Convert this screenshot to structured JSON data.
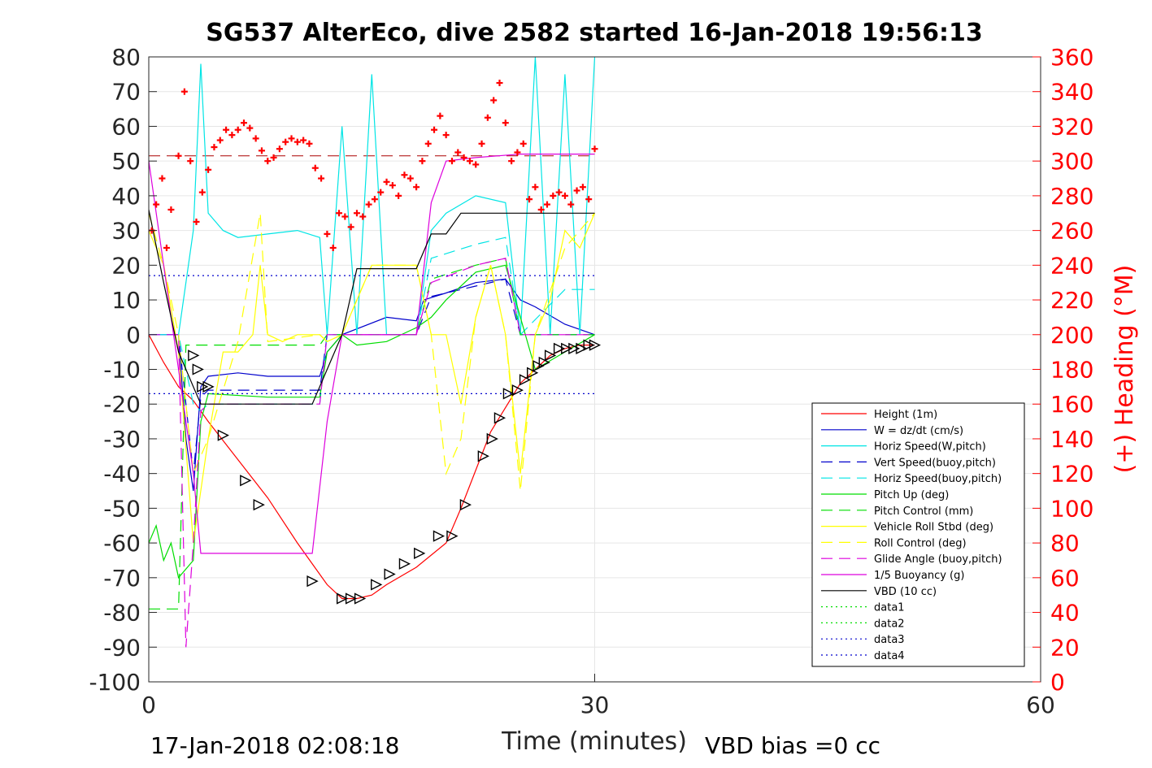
{
  "chart_data": {
    "type": "line",
    "title": "SG537 AlterEco, dive 2582 started 16-Jan-2018 19:56:13",
    "xlabel": "Time (minutes)",
    "ylabel": "",
    "ylabel_right": "(+) Heading (°M)",
    "xlim": [
      0,
      60
    ],
    "ylim": [
      -100,
      80
    ],
    "ylim_right": [
      0,
      360
    ],
    "x_ticks": [
      "0",
      "30",
      "60"
    ],
    "y_ticks": [
      "80",
      "70",
      "60",
      "50",
      "40",
      "30",
      "20",
      "10",
      "0",
      "-10",
      "-20",
      "-30",
      "-40",
      "-50",
      "-60",
      "-70",
      "-80",
      "-90",
      "-100"
    ],
    "y_ticks_right": [
      "360",
      "340",
      "320",
      "300",
      "280",
      "260",
      "240",
      "220",
      "200",
      "180",
      "160",
      "140",
      "120",
      "100",
      "80",
      "60",
      "40",
      "20",
      "0"
    ],
    "grid": true,
    "legend_position": "bottom-right",
    "footer_left": "17-Jan-2018 02:08:18",
    "footer_right": "VBD bias =0 cc",
    "series": [
      {
        "name": "Height (1m)",
        "color": "#ff0000",
        "style": "solid",
        "x": [
          0,
          1,
          2,
          3,
          4,
          6,
          8,
          10,
          12,
          13,
          14,
          15,
          16,
          18,
          20,
          21,
          23,
          25,
          26,
          27,
          28,
          29,
          30
        ],
        "y": [
          0,
          -8,
          -15,
          -19,
          -25,
          -36,
          -47,
          -60,
          -72,
          -76,
          -76,
          -75,
          -72,
          -67,
          -60,
          -50,
          -28,
          -14,
          -10,
          -6,
          -4,
          -3,
          -3
        ]
      },
      {
        "name": "W = dz/dt (cm/s)",
        "color": "#0000cc",
        "style": "solid",
        "x": [
          0,
          2,
          2.5,
          3,
          3.5,
          4,
          6,
          8,
          10,
          11.5,
          12,
          13,
          16,
          18,
          18.5,
          20,
          22,
          24,
          25,
          26,
          28,
          30
        ],
        "y": [
          0,
          0,
          -30,
          -45,
          -15,
          -12,
          -11,
          -12,
          -12,
          -12,
          -5,
          0,
          5,
          4,
          10,
          12,
          15,
          16,
          10,
          8,
          3,
          0
        ]
      },
      {
        "name": "Horiz Speed(W,pitch)",
        "color": "#00e5e5",
        "style": "solid",
        "x": [
          0,
          2,
          3,
          3.5,
          4,
          5,
          6,
          8,
          10,
          11.5,
          12,
          13,
          14,
          15,
          16,
          18,
          19,
          20,
          22,
          24,
          25,
          26,
          27,
          28,
          29,
          30
        ],
        "y": [
          0,
          0,
          30,
          78,
          35,
          30,
          28,
          29,
          30,
          28,
          0,
          60,
          0,
          75,
          0,
          0,
          30,
          35,
          40,
          38,
          0,
          80,
          0,
          75,
          0,
          80
        ]
      },
      {
        "name": "Vert Speed(buoy,pitch)",
        "color": "#0000cc",
        "style": "dashed",
        "x": [
          0,
          2,
          3,
          3.5,
          4,
          8,
          11.5,
          12,
          18,
          19,
          22,
          24,
          25,
          28,
          30
        ],
        "y": [
          0,
          0,
          -40,
          -18,
          -16,
          -16,
          -16,
          0,
          0,
          11,
          14,
          16,
          0,
          0,
          0
        ]
      },
      {
        "name": "Horiz Speed(buoy,pitch)",
        "color": "#00e5e5",
        "style": "dashed",
        "x": [
          0,
          2,
          3,
          3.5,
          4,
          8,
          11.5,
          12,
          18,
          19,
          22,
          24,
          25,
          28,
          30
        ],
        "y": [
          0,
          0,
          -20,
          -22,
          -20,
          -20,
          -20,
          0,
          0,
          22,
          26,
          28,
          0,
          13,
          13
        ]
      },
      {
        "name": "Pitch Up (deg)",
        "color": "#00dd00",
        "style": "solid",
        "x": [
          0,
          0.5,
          1,
          1.5,
          2,
          3,
          3.5,
          4,
          8,
          11.5,
          12,
          13,
          14,
          16,
          18,
          19,
          20,
          22,
          24,
          25,
          26,
          28,
          30
        ],
        "y": [
          -60,
          -55,
          -65,
          -60,
          -70,
          -65,
          -25,
          -17,
          -18,
          -18,
          -5,
          0,
          -3,
          -2,
          2,
          5,
          10,
          18,
          20,
          5,
          -10,
          -5,
          0
        ]
      },
      {
        "name": "Pitch Control (mm)",
        "color": "#00dd00",
        "style": "dashed",
        "x": [
          0,
          1,
          2,
          2.5,
          3,
          3.5,
          4,
          8,
          11.5,
          12,
          18,
          19,
          22,
          24,
          25,
          28,
          30
        ],
        "y": [
          -79,
          -79,
          -79,
          -3,
          -3,
          -3,
          -3,
          -3,
          -3,
          0,
          0,
          16,
          20,
          22,
          0,
          0,
          0
        ]
      },
      {
        "name": "Vehicle Roll Stbd (deg)",
        "color": "#ffff00",
        "style": "solid",
        "x": [
          0,
          1,
          2,
          3,
          4,
          5,
          6,
          7,
          7.5,
          8,
          9,
          10,
          11.5,
          12,
          13,
          15,
          18,
          19,
          20,
          21,
          22,
          23,
          24,
          25,
          26,
          27,
          28,
          29,
          30
        ],
        "y": [
          30,
          20,
          -5,
          -60,
          -30,
          -5,
          -5,
          0,
          20,
          0,
          -2,
          0,
          0,
          -2,
          0,
          20,
          20,
          0,
          0,
          -20,
          5,
          20,
          0,
          -40,
          0,
          10,
          30,
          25,
          35
        ]
      },
      {
        "name": "Roll Control (deg)",
        "color": "#ffff00",
        "style": "dashed",
        "x": [
          0,
          1,
          2,
          3,
          4,
          6,
          7.5,
          8,
          11.5,
          12,
          13,
          15,
          18,
          19,
          20,
          21,
          22,
          23,
          24,
          25,
          26,
          28,
          30
        ],
        "y": [
          35,
          20,
          0,
          -40,
          -30,
          -2,
          35,
          -2,
          0,
          -2,
          0,
          20,
          20,
          0,
          -40,
          -30,
          5,
          20,
          0,
          -45,
          0,
          25,
          35
        ]
      },
      {
        "name": "Glide Angle (buoy,pitch)",
        "color": "#dd00dd",
        "style": "dashed",
        "x": [
          0,
          2,
          2.5,
          3,
          3.5,
          4,
          8,
          11.5,
          12,
          18,
          19,
          22,
          24,
          25,
          28,
          30
        ],
        "y": [
          0,
          0,
          -90,
          -60,
          -22,
          -20,
          -20,
          -20,
          0,
          0,
          15,
          20,
          22,
          0,
          0,
          0
        ]
      },
      {
        "name": "1/5 Buoyancy (g)",
        "color": "#dd00dd",
        "style": "solid",
        "x": [
          0,
          1,
          2,
          3,
          3.5,
          6,
          11,
          12,
          13,
          18,
          19,
          20,
          22,
          25,
          28,
          30
        ],
        "y": [
          50,
          20,
          -10,
          -40,
          -63,
          -63,
          -63,
          -25,
          0,
          0,
          38,
          50,
          51,
          52,
          52,
          52
        ]
      },
      {
        "name": "VBD (10 cc)",
        "color": "#000000",
        "style": "solid",
        "x": [
          0,
          1,
          2,
          3,
          3.5,
          6,
          11,
          12,
          13,
          14,
          18,
          19,
          20,
          21,
          25,
          30
        ],
        "y": [
          36,
          15,
          -5,
          -15,
          -20,
          -20,
          -20,
          -10,
          0,
          19,
          19,
          29,
          29,
          35,
          35,
          35
        ]
      },
      {
        "name": "data1",
        "color": "#00dd00",
        "style": "dotted",
        "x": [],
        "y": []
      },
      {
        "name": "data2",
        "color": "#00dd00",
        "style": "dotted",
        "x": [],
        "y": []
      },
      {
        "name": "data3",
        "color": "#0000cc",
        "style": "dotted",
        "x": [
          0,
          30
        ],
        "y": [
          17,
          17
        ]
      },
      {
        "name": "data4",
        "color": "#0000cc",
        "style": "dotted",
        "x": [
          0,
          30
        ],
        "y": [
          -17,
          -17
        ]
      }
    ],
    "reference_lines": [
      {
        "axis": "right",
        "value": 303,
        "color": "#aa0000",
        "style": "dashed",
        "x_range": [
          0,
          30
        ]
      }
    ],
    "heading_markers": {
      "color": "#ff0000",
      "marker": "+",
      "x": [
        0.2,
        0.5,
        0.9,
        1.2,
        1.5,
        2,
        2.4,
        2.8,
        3.2,
        3.6,
        4,
        4.4,
        4.8,
        5.2,
        5.6,
        6,
        6.4,
        6.8,
        7.2,
        7.6,
        8,
        8.4,
        8.8,
        9.2,
        9.6,
        10,
        10.4,
        10.8,
        11.2,
        11.6,
        12,
        12.4,
        12.8,
        13.2,
        13.6,
        14,
        14.4,
        14.8,
        15.2,
        15.6,
        16,
        16.4,
        16.8,
        17.2,
        17.6,
        18,
        18.4,
        18.8,
        19.2,
        19.6,
        20,
        20.4,
        20.8,
        21.2,
        21.6,
        22,
        22.4,
        22.8,
        23.2,
        23.6,
        24,
        24.4,
        24.8,
        25.2,
        25.6,
        26,
        26.4,
        26.8,
        27.2,
        27.6,
        28,
        28.4,
        28.8,
        29.2,
        29.6,
        30
      ],
      "y": [
        260,
        275,
        290,
        250,
        272,
        303,
        340,
        300,
        265,
        282,
        295,
        308,
        312,
        318,
        315,
        318,
        322,
        319,
        313,
        306,
        300,
        302,
        307,
        311,
        313,
        311,
        312,
        310,
        296,
        290,
        258,
        250,
        270,
        268,
        262,
        270,
        268,
        275,
        278,
        282,
        288,
        286,
        280,
        292,
        290,
        285,
        300,
        310,
        318,
        326,
        315,
        300,
        305,
        302,
        300,
        298,
        310,
        325,
        335,
        345,
        322,
        300,
        305,
        310,
        278,
        285,
        272,
        275,
        280,
        282,
        280,
        275,
        283,
        285,
        278,
        307
      ]
    },
    "depth_markers": {
      "color": "#000000",
      "marker": "triangle",
      "x": [
        3,
        3.3,
        3.6,
        4,
        5,
        6.5,
        7.4,
        11,
        13,
        13.6,
        14.2,
        15.3,
        16.2,
        17.2,
        18.2,
        19.5,
        20.4,
        21.3,
        22.5,
        23.1,
        23.6,
        24.2,
        24.8,
        25.3,
        25.8,
        26.2,
        26.6,
        27,
        27.6,
        28.1,
        28.6,
        29.1,
        29.6,
        30
      ],
      "y": [
        -6,
        -10,
        -15,
        -15,
        -29,
        -42,
        -49,
        -71,
        -76,
        -76,
        -76,
        -72,
        -69,
        -66,
        -63,
        -58,
        -58,
        -49,
        -35,
        -30,
        -24,
        -17,
        -16,
        -13,
        -11,
        -9,
        -8,
        -6,
        -4,
        -4,
        -4,
        -4,
        -3,
        -3
      ]
    }
  }
}
